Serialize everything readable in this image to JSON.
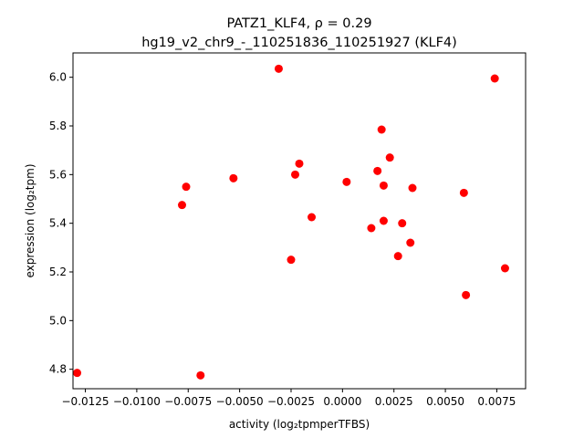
{
  "chart_data": {
    "type": "scatter",
    "title": "PATZ1_KLF4, ρ = 0.29",
    "subtitle": "hg19_v2_chr9_-_110251836_110251927 (KLF4)",
    "xlabel": "activity (log₂tpmperTFBS)",
    "ylabel": "expression (log₂tpm)",
    "xlim": [
      -0.0131,
      0.0089
    ],
    "ylim": [
      4.72,
      6.1
    ],
    "xticks": [
      -0.0125,
      -0.01,
      -0.0075,
      -0.005,
      -0.0025,
      0.0,
      0.0025,
      0.005,
      0.0075
    ],
    "xtick_labels": [
      "−0.0125",
      "−0.0100",
      "−0.0075",
      "−0.0050",
      "−0.0025",
      "0.0000",
      "0.0025",
      "0.0050",
      "0.0075"
    ],
    "yticks": [
      4.8,
      5.0,
      5.2,
      5.4,
      5.6,
      5.8,
      6.0
    ],
    "ytick_labels": [
      "4.8",
      "5.0",
      "5.2",
      "5.4",
      "5.6",
      "5.8",
      "6.0"
    ],
    "marker_color": "#ff0000",
    "grid": false,
    "points": [
      {
        "x": -0.0129,
        "y": 4.785
      },
      {
        "x": -0.0069,
        "y": 4.775
      },
      {
        "x": -0.0078,
        "y": 5.475
      },
      {
        "x": -0.0076,
        "y": 5.55
      },
      {
        "x": -0.0053,
        "y": 5.585
      },
      {
        "x": -0.0031,
        "y": 6.035
      },
      {
        "x": -0.0025,
        "y": 5.25
      },
      {
        "x": -0.0023,
        "y": 5.6
      },
      {
        "x": -0.0021,
        "y": 5.645
      },
      {
        "x": -0.0015,
        "y": 5.425
      },
      {
        "x": 0.0002,
        "y": 5.57
      },
      {
        "x": 0.0014,
        "y": 5.38
      },
      {
        "x": 0.0017,
        "y": 5.615
      },
      {
        "x": 0.0019,
        "y": 5.785
      },
      {
        "x": 0.002,
        "y": 5.555
      },
      {
        "x": 0.002,
        "y": 5.41
      },
      {
        "x": 0.0023,
        "y": 5.67
      },
      {
        "x": 0.0027,
        "y": 5.265
      },
      {
        "x": 0.0029,
        "y": 5.4
      },
      {
        "x": 0.0033,
        "y": 5.32
      },
      {
        "x": 0.0034,
        "y": 5.545
      },
      {
        "x": 0.0059,
        "y": 5.525
      },
      {
        "x": 0.006,
        "y": 5.105
      },
      {
        "x": 0.0074,
        "y": 5.995
      },
      {
        "x": 0.0079,
        "y": 5.215
      }
    ]
  }
}
